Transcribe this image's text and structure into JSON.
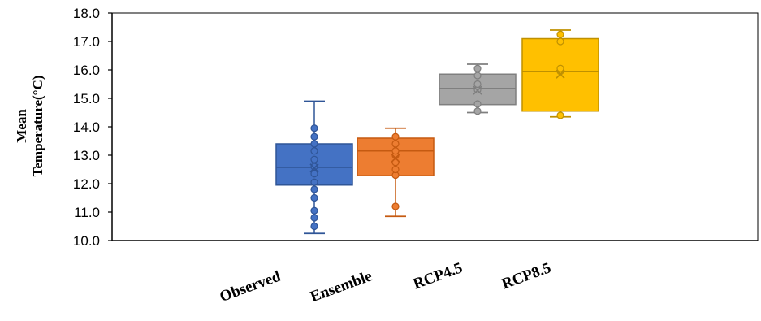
{
  "chart_data": {
    "type": "box",
    "ylabel_lines": [
      "Mean",
      "Temperature(°C)"
    ],
    "ylim": [
      10.0,
      18.0
    ],
    "y_ticks": [
      "10.0",
      "11.0",
      "12.0",
      "13.0",
      "14.0",
      "15.0",
      "16.0",
      "17.0",
      "18.0"
    ],
    "categories": [
      "Observed",
      "Ensemble",
      "RCP4.5",
      "RCP8.5"
    ],
    "grid": false,
    "legend": "none",
    "series": [
      {
        "category": "Observed",
        "color": "#4472C4",
        "stroke": "#2F5597",
        "min": 10.25,
        "q1": 11.95,
        "median": 12.57,
        "q3": 13.4,
        "max": 14.9,
        "mean": 12.55,
        "points": [
          10.5,
          10.8,
          11.05,
          11.5,
          11.8,
          12.05,
          12.35,
          12.6,
          12.85,
          13.15,
          13.4,
          13.65,
          13.95
        ]
      },
      {
        "category": "Ensemble",
        "color": "#ED7D31",
        "stroke": "#C55A11",
        "min": 10.85,
        "q1": 12.28,
        "median": 13.15,
        "q3": 13.6,
        "max": 13.95,
        "mean": 12.9,
        "points": [
          11.2,
          12.3,
          12.5,
          12.75,
          13.0,
          13.15,
          13.4,
          13.65
        ]
      },
      {
        "category": "RCP4.5",
        "color": "#A5A5A5",
        "stroke": "#7F7F7F",
        "min": 14.5,
        "q1": 14.78,
        "median": 15.35,
        "q3": 15.85,
        "max": 16.2,
        "mean": 15.28,
        "points": [
          14.55,
          14.8,
          15.3,
          15.5,
          15.8,
          16.05
        ]
      },
      {
        "category": "RCP8.5",
        "color": "#FFC000",
        "stroke": "#BF9000",
        "min": 14.35,
        "q1": 14.55,
        "median": 15.95,
        "q3": 17.1,
        "max": 17.4,
        "mean": 15.85,
        "points": [
          14.4,
          15.95,
          16.05,
          17.0,
          17.25
        ]
      }
    ]
  }
}
